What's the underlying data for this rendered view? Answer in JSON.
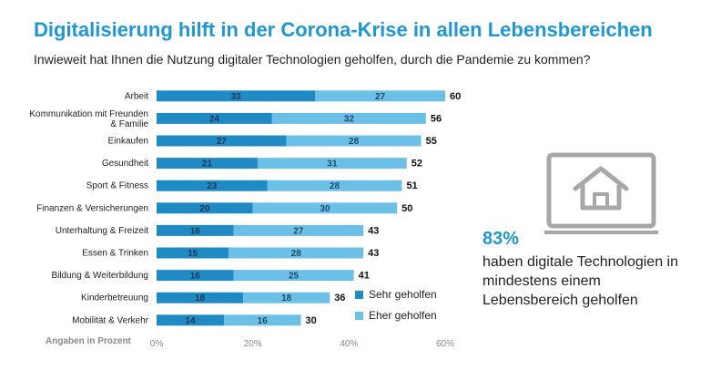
{
  "title": "Digitalisierung hilft in der Corona-Krise in allen Lebensbereichen",
  "subtitle": "Inwieweit hat Ihnen die Nutzung digitaler Technologien geholfen, durch die Pandemie zu kommen?",
  "units_label": "Angaben in Prozent",
  "colors": {
    "sehr": "#1f8ac4",
    "eher": "#6cc0e8",
    "accent": "#1f97d4",
    "icon": "#a7a7a7"
  },
  "legend": [
    "Sehr geholfen",
    "Eher geholfen"
  ],
  "callout": {
    "percent": "83%",
    "text": "haben digitale Technologien in mindestens einem Lebensbereich geholfen"
  },
  "icon": "house-icon",
  "chart_data": {
    "type": "bar",
    "orientation": "horizontal",
    "stacked": true,
    "categories": [
      "Arbeit",
      "Kommunikation mit Freunden & Familie",
      "Einkaufen",
      "Gesundheit",
      "Sport & Fitness",
      "Finanzen & Versicherungen",
      "Unterhaltung & Freizeit",
      "Essen & Trinken",
      "Bildung & Weiterbildung",
      "Kinderbetreuung",
      "Mobilität & Verkehr"
    ],
    "series": [
      {
        "name": "Sehr geholfen",
        "values": [
          33,
          24,
          27,
          21,
          23,
          20,
          16,
          15,
          16,
          18,
          14
        ]
      },
      {
        "name": "Eher geholfen",
        "values": [
          27,
          32,
          28,
          31,
          28,
          30,
          27,
          28,
          25,
          18,
          16
        ]
      }
    ],
    "totals": [
      60,
      56,
      55,
      52,
      51,
      50,
      43,
      43,
      41,
      36,
      30
    ],
    "xlim": [
      0,
      60
    ],
    "xticks": [
      "0%",
      "20%",
      "40%",
      "60%"
    ],
    "legend_position": "bottom-right"
  }
}
